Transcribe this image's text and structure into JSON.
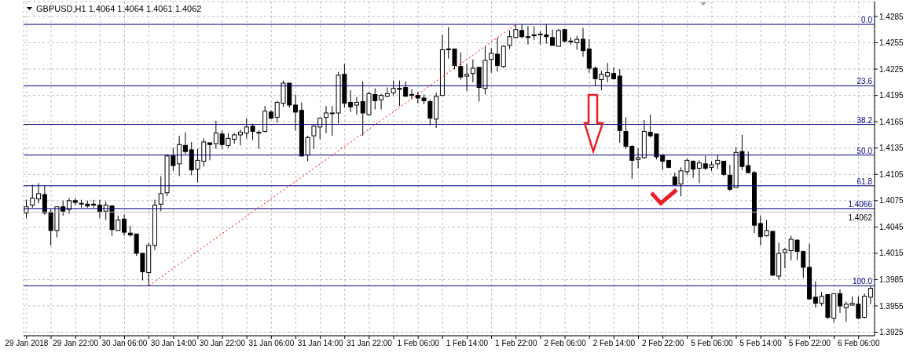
{
  "chart_data": {
    "type": "candlestick",
    "title": "GBPUSD,H1 1.4064 1.4064 1.4061 1.4062",
    "categories": [
      "29 Jan 2018",
      null,
      null,
      null,
      null,
      null,
      null,
      null,
      "29 Jan 22:00",
      null,
      null,
      null,
      null,
      null,
      null,
      null,
      "30 Jan 06:00",
      null,
      null,
      null,
      null,
      null,
      null,
      null,
      "30 Jan 14:00",
      null,
      null,
      null,
      null,
      null,
      null,
      null,
      "30 Jan 22:00",
      null,
      null,
      null,
      null,
      null,
      null,
      null,
      "31 Jan 06:00",
      null,
      null,
      null,
      null,
      null,
      null,
      null,
      "31 Jan 14:00",
      null,
      null,
      null,
      null,
      null,
      null,
      null,
      "31 Jan 22:00",
      null,
      null,
      null,
      null,
      null,
      null,
      null,
      "1 Feb 06:00",
      null,
      null,
      null,
      null,
      null,
      null,
      null,
      "1 Feb 14:00",
      null,
      null,
      null,
      null,
      null,
      null,
      null,
      "1 Feb 22:00",
      null,
      null,
      null,
      null,
      null,
      null,
      null,
      "2 Feb 06:00",
      null,
      null,
      null,
      null,
      null,
      null,
      null,
      "2 Feb 14:00",
      null,
      null,
      null,
      null,
      null,
      null,
      null,
      "2 Feb 22:00",
      null,
      null,
      null,
      null,
      null,
      null,
      null,
      "5 Feb 06:00",
      null,
      null,
      null,
      null,
      null,
      null,
      null,
      "5 Feb 14:00",
      null,
      null,
      null,
      null,
      null,
      null,
      null,
      "5 Feb 22:00",
      null,
      null,
      null,
      null,
      null,
      null,
      null,
      "6 Feb 06:00",
      null,
      null
    ],
    "ohlc": [
      [
        1.4061,
        1.4076,
        1.4055,
        1.4068
      ],
      [
        1.407,
        1.4093,
        1.4067,
        1.4078
      ],
      [
        1.4077,
        1.4095,
        1.4072,
        1.4083
      ],
      [
        1.4082,
        1.4092,
        1.4059,
        1.4061
      ],
      [
        1.4062,
        1.4065,
        1.4024,
        1.4041
      ],
      [
        1.4041,
        1.4068,
        1.4033,
        1.4068
      ],
      [
        1.4068,
        1.4075,
        1.4058,
        1.4063
      ],
      [
        1.4065,
        1.4078,
        1.406,
        1.4075
      ],
      [
        1.4075,
        1.4078,
        1.407,
        1.4073
      ],
      [
        1.4072,
        1.4076,
        1.4067,
        1.4072
      ],
      [
        1.4071,
        1.4075,
        1.4067,
        1.4069
      ],
      [
        1.4071,
        1.4076,
        1.4067,
        1.407
      ],
      [
        1.407,
        1.4076,
        1.4055,
        1.4062
      ],
      [
        1.4063,
        1.4074,
        1.4053,
        1.407
      ],
      [
        1.4069,
        1.407,
        1.4035,
        1.4042
      ],
      [
        1.4041,
        1.4058,
        1.4041,
        1.4053
      ],
      [
        1.4054,
        1.4059,
        1.4035,
        1.4039
      ],
      [
        1.4038,
        1.4046,
        1.4034,
        1.4036
      ],
      [
        1.4037,
        1.4037,
        1.4012,
        1.4015
      ],
      [
        1.4015,
        1.4015,
        1.3984,
        1.3994
      ],
      [
        1.3993,
        1.4027,
        1.3978,
        1.4024
      ],
      [
        1.4024,
        1.4076,
        1.4019,
        1.407
      ],
      [
        1.4071,
        1.4103,
        1.4063,
        1.4083
      ],
      [
        1.4084,
        1.4128,
        1.408,
        1.4126
      ],
      [
        1.4126,
        1.4135,
        1.4109,
        1.4115
      ],
      [
        1.4117,
        1.4149,
        1.4103,
        1.4139
      ],
      [
        1.4138,
        1.4153,
        1.4128,
        1.4131
      ],
      [
        1.4133,
        1.4142,
        1.4104,
        1.411
      ],
      [
        1.4111,
        1.4134,
        1.4096,
        1.4121
      ],
      [
        1.412,
        1.4146,
        1.4114,
        1.4142
      ],
      [
        1.4141,
        1.4141,
        1.4121,
        1.4139
      ],
      [
        1.414,
        1.4166,
        1.4134,
        1.4152
      ],
      [
        1.4151,
        1.4155,
        1.4134,
        1.4139
      ],
      [
        1.4138,
        1.4152,
        1.4135,
        1.4146
      ],
      [
        1.4145,
        1.4152,
        1.414,
        1.415
      ],
      [
        1.415,
        1.4156,
        1.4138,
        1.4153
      ],
      [
        1.4152,
        1.4169,
        1.4146,
        1.4159
      ],
      [
        1.416,
        1.4163,
        1.4144,
        1.4154
      ],
      [
        1.4153,
        1.4155,
        1.4134,
        1.4153
      ],
      [
        1.4154,
        1.4183,
        1.4153,
        1.4177
      ],
      [
        1.4176,
        1.4178,
        1.4168,
        1.4169
      ],
      [
        1.417,
        1.4189,
        1.4164,
        1.4187
      ],
      [
        1.4186,
        1.4212,
        1.4182,
        1.4209
      ],
      [
        1.4209,
        1.4209,
        1.4181,
        1.4184
      ],
      [
        1.4184,
        1.4196,
        1.4155,
        1.4176
      ],
      [
        1.4178,
        1.4187,
        1.4125,
        1.4126
      ],
      [
        1.4127,
        1.4149,
        1.412,
        1.4147
      ],
      [
        1.4149,
        1.4161,
        1.4134,
        1.416
      ],
      [
        1.4159,
        1.417,
        1.4145,
        1.4169
      ],
      [
        1.417,
        1.4183,
        1.4152,
        1.4175
      ],
      [
        1.4175,
        1.4183,
        1.4149,
        1.4175
      ],
      [
        1.4175,
        1.4222,
        1.4163,
        1.4218
      ],
      [
        1.4219,
        1.4231,
        1.4181,
        1.4186
      ],
      [
        1.4187,
        1.4201,
        1.4176,
        1.4182
      ],
      [
        1.4184,
        1.4193,
        1.4173,
        1.4187
      ],
      [
        1.4188,
        1.4211,
        1.4149,
        1.4175
      ],
      [
        1.4173,
        1.4199,
        1.4172,
        1.4197
      ],
      [
        1.4196,
        1.4203,
        1.4179,
        1.4189
      ],
      [
        1.419,
        1.4197,
        1.4179,
        1.4195
      ],
      [
        1.4194,
        1.4204,
        1.4193,
        1.4197
      ],
      [
        1.4198,
        1.4212,
        1.4195,
        1.4203
      ],
      [
        1.4203,
        1.4212,
        1.4183,
        1.4202
      ],
      [
        1.4204,
        1.4211,
        1.4194,
        1.4194
      ],
      [
        1.4196,
        1.4202,
        1.4191,
        1.4195
      ],
      [
        1.4195,
        1.4199,
        1.4186,
        1.4192
      ],
      [
        1.4192,
        1.4196,
        1.4185,
        1.4189
      ],
      [
        1.4188,
        1.419,
        1.4161,
        1.4169
      ],
      [
        1.4168,
        1.4198,
        1.4158,
        1.4194
      ],
      [
        1.4195,
        1.4264,
        1.4195,
        1.4247
      ],
      [
        1.4248,
        1.4273,
        1.4237,
        1.4247
      ],
      [
        1.4248,
        1.4248,
        1.4225,
        1.4229
      ],
      [
        1.4228,
        1.4244,
        1.4213,
        1.4216
      ],
      [
        1.4217,
        1.4231,
        1.42,
        1.4219
      ],
      [
        1.422,
        1.4236,
        1.421,
        1.4226
      ],
      [
        1.4227,
        1.4227,
        1.4188,
        1.4204
      ],
      [
        1.4203,
        1.4251,
        1.4196,
        1.4235
      ],
      [
        1.4236,
        1.4249,
        1.4221,
        1.4243
      ],
      [
        1.4242,
        1.4261,
        1.4222,
        1.4229
      ],
      [
        1.4228,
        1.4252,
        1.4226,
        1.4251
      ],
      [
        1.4252,
        1.4269,
        1.4248,
        1.4262
      ],
      [
        1.4261,
        1.4276,
        1.426,
        1.427
      ],
      [
        1.4269,
        1.4276,
        1.426,
        1.4262
      ],
      [
        1.4262,
        1.4274,
        1.4253,
        1.4261
      ],
      [
        1.4264,
        1.4274,
        1.4258,
        1.4263
      ],
      [
        1.4265,
        1.4268,
        1.4253,
        1.4265
      ],
      [
        1.4264,
        1.4276,
        1.4254,
        1.4262
      ],
      [
        1.4261,
        1.427,
        1.4252,
        1.4252
      ],
      [
        1.4251,
        1.4271,
        1.4251,
        1.4269
      ],
      [
        1.427,
        1.4271,
        1.4255,
        1.4257
      ],
      [
        1.4256,
        1.4261,
        1.4253,
        1.4257
      ],
      [
        1.4255,
        1.4263,
        1.4247,
        1.4259
      ],
      [
        1.4259,
        1.4272,
        1.4239,
        1.4246
      ],
      [
        1.4248,
        1.4259,
        1.4221,
        1.4226
      ],
      [
        1.4226,
        1.4228,
        1.4206,
        1.4214
      ],
      [
        1.4213,
        1.4223,
        1.4201,
        1.4219
      ],
      [
        1.4217,
        1.4232,
        1.421,
        1.4221
      ],
      [
        1.422,
        1.4227,
        1.4213,
        1.4214
      ],
      [
        1.4217,
        1.4225,
        1.4141,
        1.4155
      ],
      [
        1.4154,
        1.417,
        1.4134,
        1.4137
      ],
      [
        1.4137,
        1.4138,
        1.41,
        1.4121
      ],
      [
        1.4122,
        1.4135,
        1.4112,
        1.4124
      ],
      [
        1.4124,
        1.4167,
        1.4123,
        1.4154
      ],
      [
        1.4153,
        1.4173,
        1.4147,
        1.4149
      ],
      [
        1.4151,
        1.4151,
        1.4122,
        1.4125
      ],
      [
        1.4127,
        1.4128,
        1.411,
        1.412
      ],
      [
        1.4121,
        1.4121,
        1.4112,
        1.4113
      ],
      [
        1.4102,
        1.4107,
        1.4092,
        1.4093
      ],
      [
        1.4094,
        1.4113,
        1.408,
        1.4109
      ],
      [
        1.4108,
        1.4123,
        1.4104,
        1.4121
      ],
      [
        1.412,
        1.4121,
        1.4101,
        1.4111
      ],
      [
        1.4112,
        1.4121,
        1.4095,
        1.4118
      ],
      [
        1.4117,
        1.4126,
        1.411,
        1.4112
      ],
      [
        1.4113,
        1.412,
        1.4109,
        1.4116
      ],
      [
        1.4117,
        1.4127,
        1.4111,
        1.4121
      ],
      [
        1.412,
        1.412,
        1.4103,
        1.4105
      ],
      [
        1.4104,
        1.4116,
        1.4086,
        1.4088
      ],
      [
        1.409,
        1.4136,
        1.409,
        1.413
      ],
      [
        1.4131,
        1.415,
        1.411,
        1.4114
      ],
      [
        1.4115,
        1.4131,
        1.4106,
        1.4107
      ],
      [
        1.4107,
        1.4109,
        1.4038,
        1.4047
      ],
      [
        1.4049,
        1.4058,
        1.4024,
        1.4034
      ],
      [
        1.4035,
        1.4053,
        1.4034,
        1.4041
      ],
      [
        1.404,
        1.404,
        1.3989,
        1.399
      ],
      [
        1.3989,
        1.4027,
        1.3985,
        1.4015
      ],
      [
        1.4016,
        1.4021,
        1.3998,
        1.4019
      ],
      [
        1.4018,
        1.4035,
        1.4007,
        1.4031
      ],
      [
        1.403,
        1.4031,
        1.4007,
        1.4017
      ],
      [
        1.4017,
        1.4018,
        1.3987,
        1.3999
      ],
      [
        1.3999,
        1.4026,
        1.3962,
        1.3963
      ],
      [
        1.3965,
        1.3983,
        1.3953,
        1.3958
      ],
      [
        1.3958,
        1.3971,
        1.3955,
        1.3966
      ],
      [
        1.3968,
        1.3968,
        1.394,
        1.3942
      ],
      [
        1.3941,
        1.3969,
        1.3936,
        1.3969
      ],
      [
        1.3969,
        1.3974,
        1.3947,
        1.3955
      ],
      [
        1.3953,
        1.396,
        1.3937,
        1.3957
      ],
      [
        1.3956,
        1.3966,
        1.3955,
        1.3958
      ],
      [
        1.3957,
        1.3966,
        1.394,
        1.3941
      ],
      [
        1.3942,
        1.3969,
        1.3941,
        1.3966
      ],
      [
        1.3965,
        1.3978,
        1.3957,
        1.3975
      ]
    ],
    "series": [
      {
        "type": "line",
        "color": "#ff0000",
        "line_style": "dotted",
        "values": [
          null,
          null,
          null,
          null,
          null,
          null,
          null,
          null,
          null,
          null,
          null,
          null,
          null,
          null,
          null,
          null,
          null,
          null,
          null,
          null,
          1.3978,
          null,
          null,
          null,
          null,
          null,
          null,
          null,
          null,
          null,
          null,
          null,
          null,
          null,
          null,
          null,
          null,
          null,
          null,
          null,
          null,
          null,
          null,
          null,
          null,
          null,
          null,
          null,
          null,
          null,
          null,
          null,
          null,
          null,
          null,
          null,
          null,
          null,
          null,
          null,
          null,
          null,
          null,
          null,
          null,
          null,
          null,
          null,
          null,
          null,
          null,
          null,
          null,
          null,
          null,
          null,
          null,
          null,
          null,
          null,
          1.4276,
          null,
          null,
          null,
          null,
          null,
          null,
          null,
          null,
          null,
          null,
          null,
          null,
          null,
          null,
          null,
          null,
          null,
          null,
          null,
          null,
          null,
          null,
          null,
          null,
          null,
          null,
          null,
          null,
          null,
          null,
          null,
          null,
          null,
          null,
          null,
          null,
          null,
          null,
          null,
          null,
          null,
          null,
          null,
          null,
          null,
          null,
          null,
          null,
          null,
          null,
          null,
          null,
          null,
          null,
          null,
          null,
          null,
          null
        ]
      }
    ],
    "ylim": [
      1.3921,
      1.4302
    ],
    "yticks": [
      1.3925,
      1.3955,
      1.3985,
      1.4015,
      1.4045,
      1.4075,
      1.4105,
      1.4135,
      1.4165,
      1.4195,
      1.4225,
      1.4255,
      1.4285
    ],
    "grid": true,
    "ref_lines": [
      {
        "axis": "y",
        "value": 1.4276,
        "color": "#000080"
      },
      {
        "axis": "y",
        "value": 1.4206,
        "color": "#000080"
      },
      {
        "axis": "y",
        "value": 1.4162,
        "color": "#000080"
      },
      {
        "axis": "y",
        "value": 1.4127,
        "color": "#000080"
      },
      {
        "axis": "y",
        "value": 1.4092,
        "color": "#000080"
      },
      {
        "axis": "y",
        "value": 1.3978,
        "color": "#000080"
      },
      {
        "axis": "y",
        "value": 1.4066,
        "color": "#000080"
      },
      {
        "axis": "y",
        "value": 1.4062,
        "color": "#c0c0c0"
      }
    ],
    "annotations": [
      {
        "text": "0.0",
        "y": 1.4276
      },
      {
        "text": "23.6",
        "y": 1.4206
      },
      {
        "text": "38.2",
        "y": 1.4162
      },
      {
        "text": "50.0",
        "y": 1.4127
      },
      {
        "text": "61.8",
        "y": 1.4092
      },
      {
        "text": "100.0",
        "y": 1.3978
      },
      {
        "text": "1.4066",
        "y": 1.4066
      },
      {
        "text": "1.4062",
        "y": 1.4062
      }
    ]
  }
}
